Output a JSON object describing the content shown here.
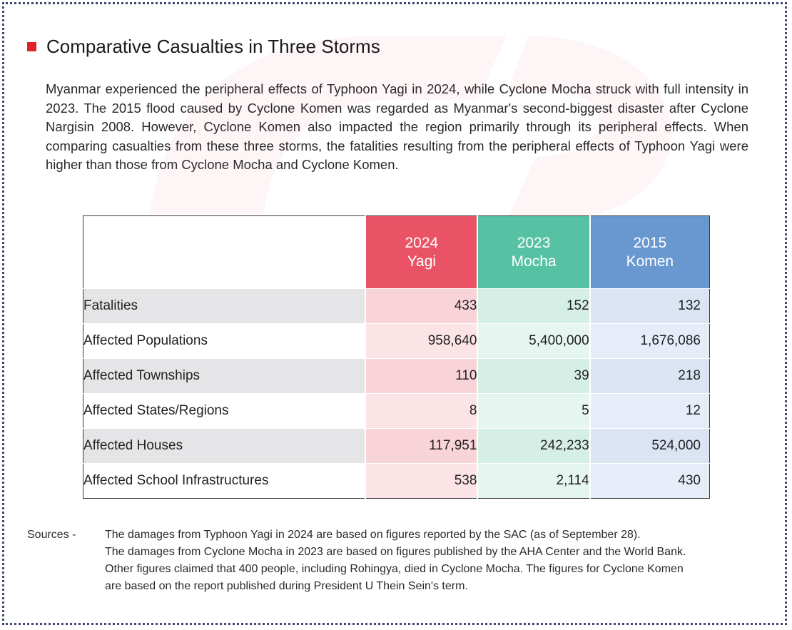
{
  "title": "Comparative Casualties in Three Storms",
  "intro": "Myanmar experienced the peripheral effects of Typhoon Yagi in 2024, while Cyclone Mocha struck with full intensity in 2023. The 2015 flood caused by Cyclone Komen was regarded as Myanmar's second-biggest disaster after Cyclone Nargisin 2008. However, Cyclone Komen also impacted the region primarily through its peripheral effects. When comparing casualties from these three storms, the fatalities resulting from the peripheral effects of Typhoon Yagi were higher than those from Cyclone Mocha and Cyclone Komen.",
  "table": {
    "columns": [
      {
        "year": "2024",
        "name": "Yagi",
        "color": "#ea5366"
      },
      {
        "year": "2023",
        "name": "Mocha",
        "color": "#57c2a3"
      },
      {
        "year": "2015",
        "name": "Komen",
        "color": "#6997cf"
      }
    ],
    "rows": [
      {
        "label": "Fatalities",
        "yagi": "433",
        "mocha": "152",
        "komen": "132"
      },
      {
        "label": "Affected Populations",
        "yagi": "958,640",
        "mocha": "5,400,000",
        "komen": "1,676,086"
      },
      {
        "label": "Affected Townships",
        "yagi": "110",
        "mocha": "39",
        "komen": "218"
      },
      {
        "label": "Affected States/Regions",
        "yagi": "8",
        "mocha": "5",
        "komen": "12"
      },
      {
        "label": "Affected Houses",
        "yagi": "117,951",
        "mocha": "242,233",
        "komen": "524,000"
      },
      {
        "label": "Affected School Infrastructures",
        "yagi": "538",
        "mocha": "2,114",
        "komen": "430"
      }
    ]
  },
  "sources": {
    "label": "Sources  -",
    "lines": [
      "The damages from Typhoon Yagi in 2024 are based on figures reported by the SAC (as of September 28).",
      "The damages from Cyclone Mocha in 2023 are based on figures published by the AHA Center and the World Bank.",
      "Other figures claimed that 400 people, including Rohingya, died in Cyclone Mocha. The figures for Cyclone Komen",
      "are based on the report published during President U Thein Sein's term."
    ]
  },
  "colors": {
    "accent": "#e0202a",
    "border": "#3d4a6b"
  }
}
